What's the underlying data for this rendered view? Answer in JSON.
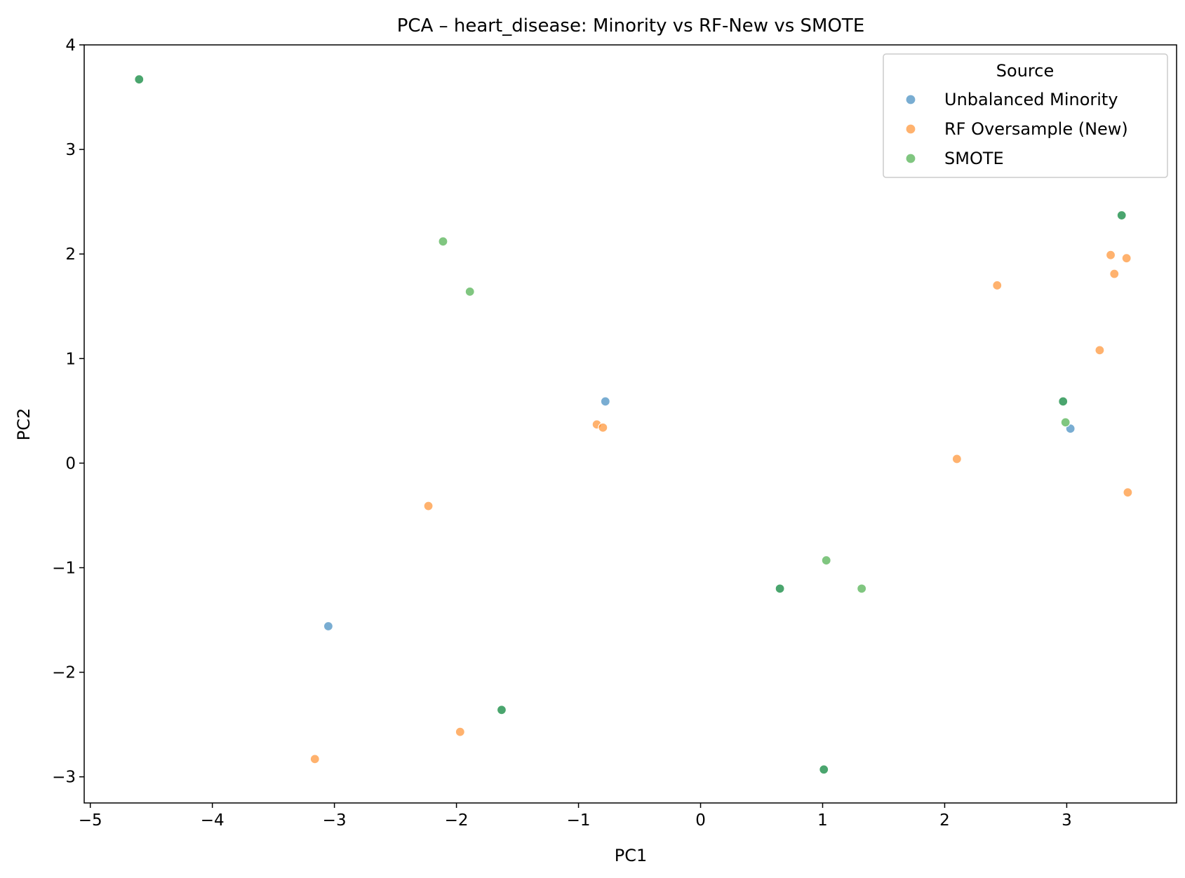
{
  "chart_data": {
    "type": "scatter",
    "title": "PCA – heart_disease: Minority vs RF-New vs SMOTE",
    "xlabel": "PC1",
    "ylabel": "PC2",
    "xlim": [
      -5.05,
      3.9
    ],
    "ylim": [
      -3.25,
      4.0
    ],
    "xticks": [
      -5,
      -4,
      -3,
      -2,
      -1,
      0,
      1,
      2,
      3
    ],
    "xtick_labels": [
      "−5",
      "−4",
      "−3",
      "−2",
      "−1",
      "0",
      "1",
      "2",
      "3"
    ],
    "yticks": [
      -3,
      -2,
      -1,
      0,
      1,
      2,
      3,
      4
    ],
    "ytick_labels": [
      "−3",
      "−2",
      "−1",
      "0",
      "1",
      "2",
      "3",
      "4"
    ],
    "grid": false,
    "legend": {
      "title": "Source",
      "placement": "top-right",
      "entries": [
        "Unbalanced Minority",
        "RF Oversample (New)",
        "SMOTE"
      ]
    },
    "series": [
      {
        "name": "Unbalanced Minority",
        "color": "#1f77b4",
        "points": [
          {
            "x": -4.6,
            "y": 3.67
          },
          {
            "x": -3.05,
            "y": -1.56
          },
          {
            "x": -1.63,
            "y": -2.36
          },
          {
            "x": -0.78,
            "y": 0.59
          },
          {
            "x": 0.65,
            "y": -1.2
          },
          {
            "x": 1.01,
            "y": -2.93
          },
          {
            "x": 2.97,
            "y": 0.59
          },
          {
            "x": 3.03,
            "y": 0.33
          },
          {
            "x": 3.45,
            "y": 2.37
          }
        ]
      },
      {
        "name": "RF Oversample (New)",
        "color": "#ff7f0e",
        "points": [
          {
            "x": -3.16,
            "y": -2.83
          },
          {
            "x": -2.23,
            "y": -0.41
          },
          {
            "x": -1.97,
            "y": -2.57
          },
          {
            "x": -0.85,
            "y": 0.37
          },
          {
            "x": -0.8,
            "y": 0.34
          },
          {
            "x": 2.1,
            "y": 0.04
          },
          {
            "x": 2.43,
            "y": 1.7
          },
          {
            "x": 3.27,
            "y": 1.08
          },
          {
            "x": 3.36,
            "y": 1.99
          },
          {
            "x": 3.39,
            "y": 1.81
          },
          {
            "x": 3.49,
            "y": 1.96
          },
          {
            "x": 3.5,
            "y": -0.28
          }
        ]
      },
      {
        "name": "SMOTE",
        "color": "#2ca02c",
        "points": [
          {
            "x": -4.6,
            "y": 3.67
          },
          {
            "x": -2.11,
            "y": 2.12
          },
          {
            "x": -1.89,
            "y": 1.64
          },
          {
            "x": -1.63,
            "y": -2.36
          },
          {
            "x": 0.65,
            "y": -1.2
          },
          {
            "x": 1.01,
            "y": -2.93
          },
          {
            "x": 1.03,
            "y": -0.93
          },
          {
            "x": 1.32,
            "y": -1.2
          },
          {
            "x": 2.97,
            "y": 0.59
          },
          {
            "x": 2.99,
            "y": 0.39
          },
          {
            "x": 3.45,
            "y": 2.37
          }
        ]
      }
    ]
  }
}
